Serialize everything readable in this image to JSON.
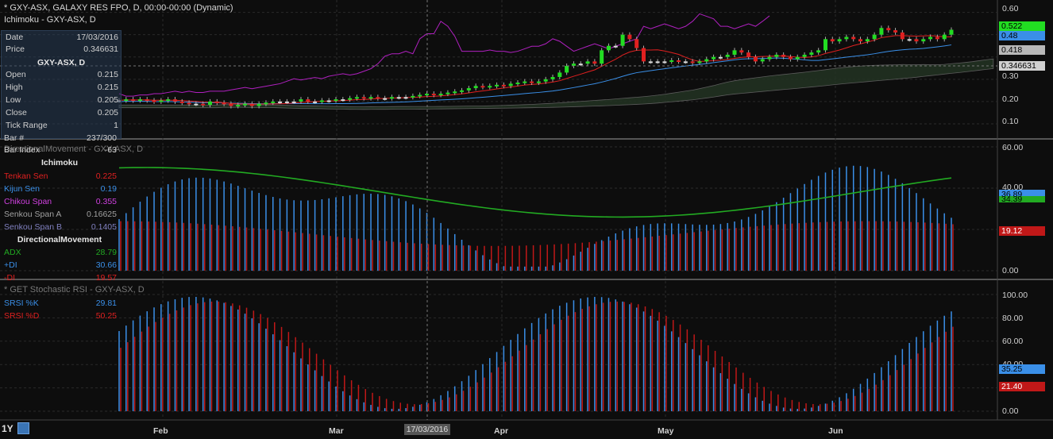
{
  "header": {
    "title": "* GXY-ASX, GALAXY RES FPO, D, 00:00-00:00 (Dynamic)",
    "ichimoku_title": "Ichimoku - GXY-ASX, D",
    "dm_title": "DirectionalMovement - GXY-ASX, D",
    "srsi_title": "* GET Stochastic RSI - GXY-ASX, D"
  },
  "info_panel": {
    "date_label": "Date",
    "date_value": "17/03/2016",
    "price_label": "Price",
    "price_value": "0.346631",
    "symbol": "GXY-ASX, D",
    "open_label": "Open",
    "open_value": "0.215",
    "high_label": "High",
    "high_value": "0.215",
    "low_label": "Low",
    "low_value": "0.205",
    "close_label": "Close",
    "close_value": "0.205",
    "tick_label": "Tick Range",
    "tick_value": "1",
    "bar_label": "Bar #",
    "bar_value": "237/300",
    "barindex_label": "Bar Index",
    "barindex_value": "-63"
  },
  "ichimoku_legend": {
    "title": "Ichimoku",
    "tenkan_label": "Tenkan Sen",
    "tenkan_value": "0.225",
    "kijun_label": "Kijun Sen",
    "kijun_value": "0.19",
    "chikou_label": "Chikou Span",
    "chikou_value": "0.355",
    "spana_label": "Senkou Span A",
    "spana_value": "0.16625",
    "spanb_label": "Senkou Span B",
    "spanb_value": "0.1405"
  },
  "dm_legend": {
    "title": "DirectionalMovement",
    "adx_label": "ADX",
    "adx_value": "28.79",
    "pdi_label": "+DI",
    "pdi_value": "30.66",
    "mdi_label": "-DI",
    "mdi_value": "19.57"
  },
  "srsi_legend": {
    "k_label": "SRSI %K",
    "k_value": "29.81",
    "d_label": "SRSI %D",
    "d_value": "50.25"
  },
  "price_tags": {
    "t1": "0.522",
    "t2": "0.48",
    "t3": "0.418",
    "t4": "0.346631"
  },
  "dm_tags": {
    "t1": "36.89",
    "t2": "34.39",
    "t3": "19.12"
  },
  "srsi_tags": {
    "t1": "35.25",
    "t2": "21.40"
  },
  "colors": {
    "up": "#22dd22",
    "down": "#e02020",
    "tenkan": "#e02020",
    "kijun": "#3a8fe8",
    "chikou": "#b020c0",
    "cloud": "#2a3a2a",
    "adx": "#22aa22",
    "pdi": "#3a8fe8",
    "mdi": "#c01818",
    "srsi_k": "#3a8fe8",
    "srsi_d": "#c01818"
  },
  "chart_data": [
    {
      "type": "candlestick",
      "ylim": [
        0.05,
        0.62
      ],
      "y_ticks": [
        "0.60",
        "0.50",
        "0.40",
        "0.30",
        "0.20",
        "0.10"
      ],
      "x_ticks": [
        "Feb",
        "Mar",
        "Apr",
        "May",
        "Jun"
      ],
      "cursor_date": "17/03/2016",
      "close": [
        0.205,
        0.21,
        0.205,
        0.21,
        0.205,
        0.2,
        0.205,
        0.21,
        0.2,
        0.195,
        0.19,
        0.19,
        0.185,
        0.2,
        0.195,
        0.19,
        0.18,
        0.185,
        0.19,
        0.18,
        0.19,
        0.195,
        0.2,
        0.2,
        0.2,
        0.2,
        0.21,
        0.2,
        0.2,
        0.205,
        0.205,
        0.21,
        0.21,
        0.215,
        0.22,
        0.215,
        0.22,
        0.215,
        0.215,
        0.22,
        0.22,
        0.22,
        0.225,
        0.23,
        0.235,
        0.23,
        0.235,
        0.24,
        0.245,
        0.25,
        0.26,
        0.27,
        0.265,
        0.27,
        0.275,
        0.27,
        0.28,
        0.285,
        0.29,
        0.285,
        0.29,
        0.3,
        0.31,
        0.33,
        0.36,
        0.37,
        0.37,
        0.38,
        0.37,
        0.43,
        0.45,
        0.45,
        0.5,
        0.48,
        0.44,
        0.38,
        0.38,
        0.38,
        0.38,
        0.385,
        0.38,
        0.38,
        0.375,
        0.38,
        0.39,
        0.4,
        0.4,
        0.41,
        0.43,
        0.42,
        0.4,
        0.38,
        0.39,
        0.4,
        0.41,
        0.4,
        0.39,
        0.4,
        0.41,
        0.42,
        0.43,
        0.48,
        0.47,
        0.48,
        0.49,
        0.48,
        0.47,
        0.48,
        0.5,
        0.53,
        0.52,
        0.51,
        0.48,
        0.48,
        0.47,
        0.48,
        0.49,
        0.48,
        0.5,
        0.522
      ]
    },
    {
      "type": "bar+line",
      "ylim": [
        0,
        60
      ],
      "y_ticks": [
        "60.00",
        "40.00",
        "20.00",
        "0.00"
      ],
      "series": [
        {
          "name": "ADX"
        },
        {
          "name": "+DI"
        },
        {
          "name": "-DI"
        }
      ]
    },
    {
      "type": "bar",
      "ylim": [
        0,
        100
      ],
      "y_ticks": [
        "100.00",
        "80.00",
        "60.00",
        "40.00",
        "20.00",
        "0.00"
      ],
      "series": [
        {
          "name": "SRSI %K"
        },
        {
          "name": "SRSI %D"
        }
      ]
    }
  ]
}
